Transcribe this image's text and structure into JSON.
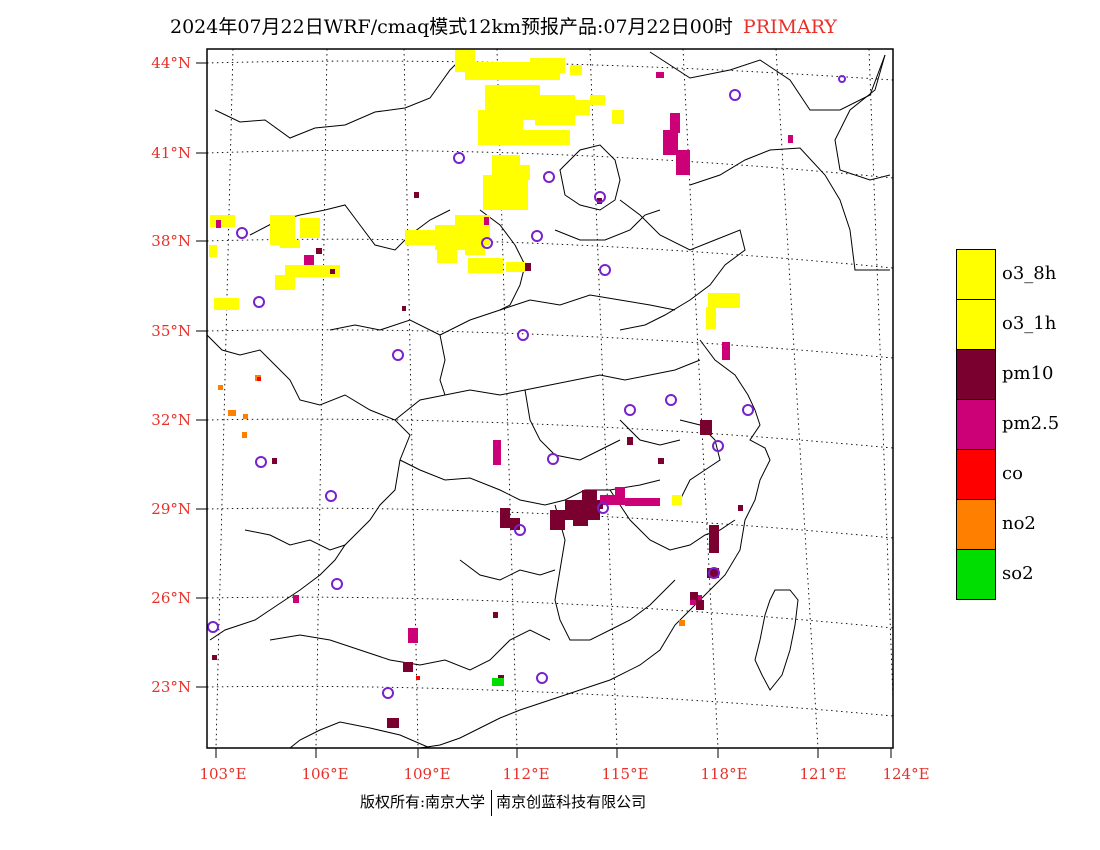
{
  "title": {
    "text": "2024年07月22日WRF/cmaq模式12km预报产品:07月22日00时",
    "tag": "PRIMARY",
    "tag_color": "#e8302a"
  },
  "axes": {
    "lat_labels": [
      "44°N",
      "41°N",
      "38°N",
      "35°N",
      "32°N",
      "29°N",
      "26°N",
      "23°N"
    ],
    "lon_labels": [
      "103°E",
      "106°E",
      "109°E",
      "112°E",
      "115°E",
      "118°E",
      "121°E",
      "124°E"
    ],
    "label_color": "#e8302a"
  },
  "legend": [
    {
      "label": "o3_8h",
      "color": "#ffff00"
    },
    {
      "label": "o3_1h",
      "color": "#ffff00"
    },
    {
      "label": "pm10",
      "color": "#7a0030"
    },
    {
      "label": "pm2.5",
      "color": "#cc0077"
    },
    {
      "label": "co",
      "color": "#ff0000"
    },
    {
      "label": "no2",
      "color": "#ff7f00"
    },
    {
      "label": "so2",
      "color": "#00dd00"
    }
  ],
  "footer": {
    "left": "版权所有:南京大学",
    "right": "南京创蓝科技有限公司"
  }
}
